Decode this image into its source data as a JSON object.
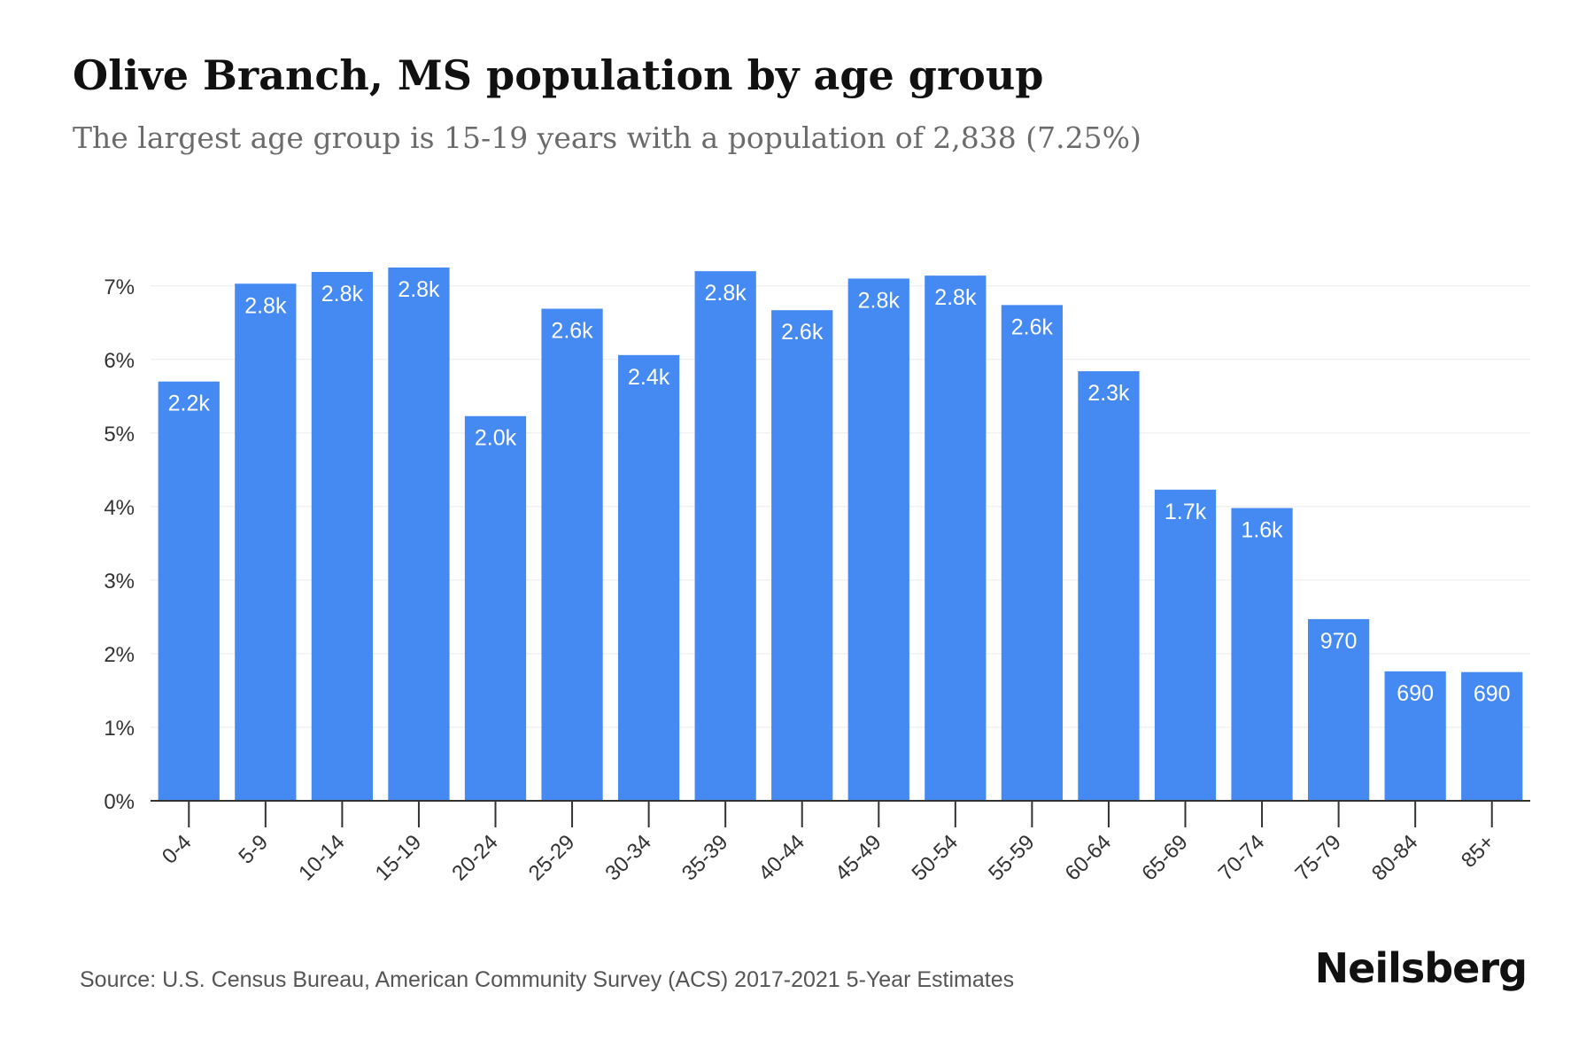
{
  "header": {
    "title": "Olive Branch, MS population by age group",
    "subtitle": "The largest age group is 15-19 years with a population of 2,838 (7.25%)"
  },
  "footer": {
    "source": "Source: U.S. Census Bureau, American Community Survey (ACS) 2017-2021 5-Year Estimates",
    "brand": "Neilsberg"
  },
  "colors": {
    "bar": "#4589f2",
    "grid": "#ebebeb",
    "axis": "#333333"
  },
  "chart_data": {
    "type": "bar",
    "title": "Olive Branch, MS population by age group",
    "subtitle": "The largest age group is 15-19 years with a population of 2,838 (7.25%)",
    "xlabel": "",
    "ylabel": "",
    "categories": [
      "0-4",
      "5-9",
      "10-14",
      "15-19",
      "20-24",
      "25-29",
      "30-34",
      "35-39",
      "40-44",
      "45-49",
      "50-54",
      "55-59",
      "60-64",
      "65-69",
      "70-74",
      "75-79",
      "80-84",
      "85+"
    ],
    "values": [
      5.7,
      7.03,
      7.19,
      7.25,
      5.23,
      6.69,
      6.06,
      7.2,
      6.67,
      7.1,
      7.14,
      6.74,
      5.84,
      4.23,
      3.98,
      2.47,
      1.76,
      1.75
    ],
    "data_labels": [
      "2.2k",
      "2.8k",
      "2.8k",
      "2.8k",
      "2.0k",
      "2.6k",
      "2.4k",
      "2.8k",
      "2.6k",
      "2.8k",
      "2.8k",
      "2.6k",
      "2.3k",
      "1.7k",
      "1.6k",
      "970",
      "690",
      "690"
    ],
    "y_ticks": [
      0,
      1,
      2,
      3,
      4,
      5,
      6,
      7
    ],
    "y_tick_labels": [
      "0%",
      "1%",
      "2%",
      "3%",
      "4%",
      "5%",
      "6%",
      "7%"
    ],
    "ylim": [
      0,
      7.25
    ],
    "grid": true,
    "legend": "none"
  }
}
